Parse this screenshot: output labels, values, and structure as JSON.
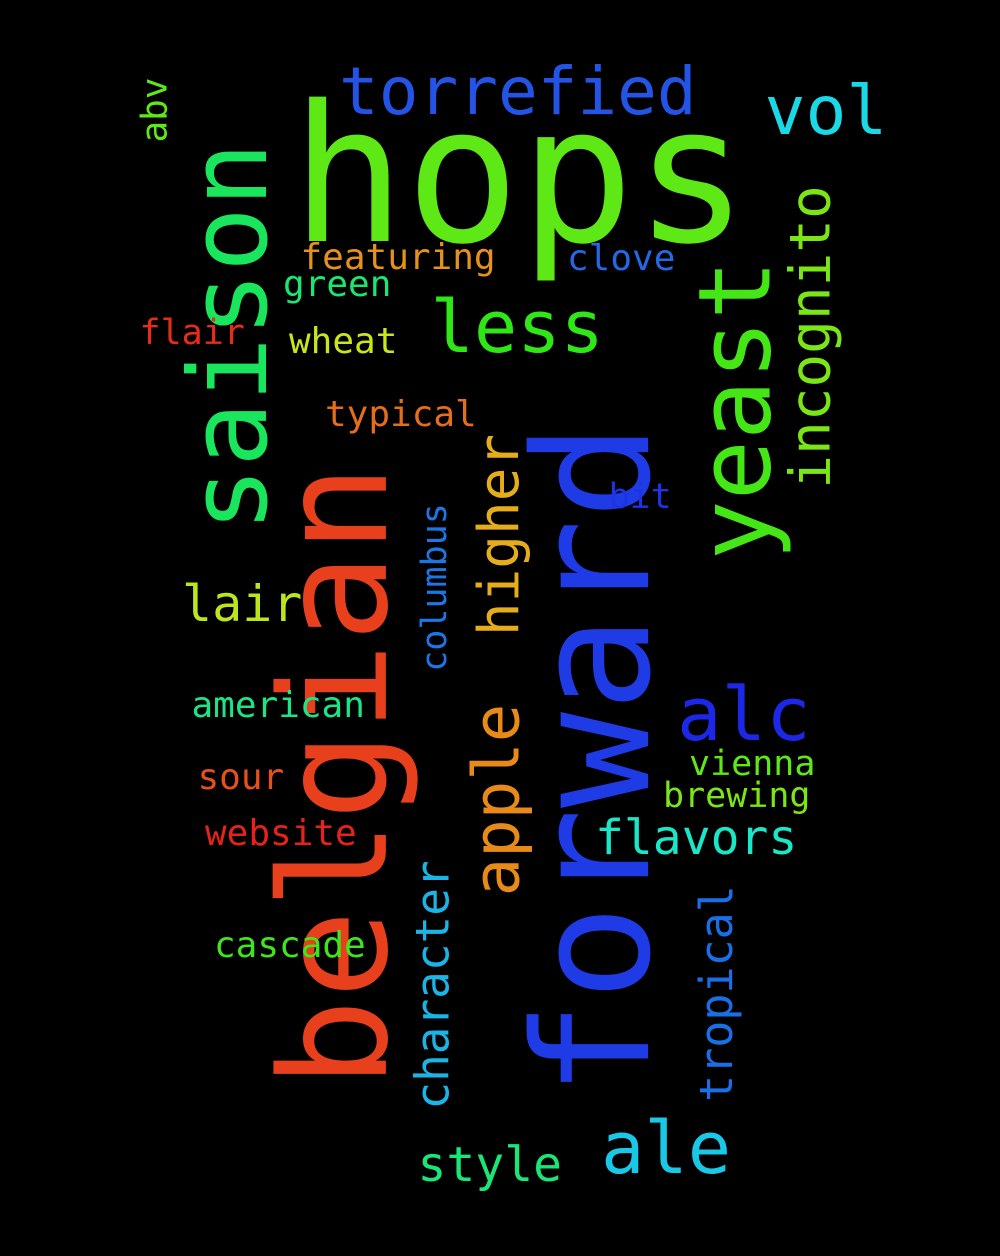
{
  "words": [
    {
      "text": "hops",
      "color": "#5ee815",
      "vertical": false
    },
    {
      "text": "forward",
      "color": "#1f3be6",
      "vertical": true
    },
    {
      "text": "belgian",
      "color": "#e8401c",
      "vertical": true
    },
    {
      "text": "saison",
      "color": "#19e65c",
      "vertical": true
    },
    {
      "text": "yeast",
      "color": "#45e616",
      "vertical": true
    },
    {
      "text": "torrefied",
      "color": "#2454e6",
      "vertical": false
    },
    {
      "text": "vol",
      "color": "#1ad8e6",
      "vertical": false
    },
    {
      "text": "less",
      "color": "#2fe617",
      "vertical": false
    },
    {
      "text": "incognito",
      "color": "#7ae616",
      "vertical": true
    },
    {
      "text": "apple",
      "color": "#e88a18",
      "vertical": true
    },
    {
      "text": "higher",
      "color": "#e6ad1a",
      "vertical": true
    },
    {
      "text": "alc",
      "color": "#1c28e6",
      "vertical": false
    },
    {
      "text": "ale",
      "color": "#19c8e6",
      "vertical": false
    },
    {
      "text": "lair",
      "color": "#bde61a",
      "vertical": false
    },
    {
      "text": "abv",
      "color": "#5ee818",
      "vertical": true
    },
    {
      "text": "featuring",
      "color": "#e6921a",
      "vertical": false
    },
    {
      "text": "clove",
      "color": "#2468e6",
      "vertical": false
    },
    {
      "text": "green",
      "color": "#1ae670",
      "vertical": false
    },
    {
      "text": "flair",
      "color": "#e62c1a",
      "vertical": false
    },
    {
      "text": "wheat",
      "color": "#c8e61a",
      "vertical": false
    },
    {
      "text": "typical",
      "color": "#e66e1a",
      "vertical": false
    },
    {
      "text": "bit",
      "color": "#1c34e6",
      "vertical": false
    },
    {
      "text": "columbus",
      "color": "#1a78e6",
      "vertical": true
    },
    {
      "text": "american",
      "color": "#1ae686",
      "vertical": false
    },
    {
      "text": "vienna",
      "color": "#5ee81a",
      "vertical": false
    },
    {
      "text": "brewing",
      "color": "#7ae61a",
      "vertical": false
    },
    {
      "text": "sour",
      "color": "#e6501a",
      "vertical": false
    },
    {
      "text": "flavors",
      "color": "#1ae6c8",
      "vertical": false
    },
    {
      "text": "website",
      "color": "#e6221a",
      "vertical": false
    },
    {
      "text": "character",
      "color": "#1ab4e6",
      "vertical": true
    },
    {
      "text": "tropical",
      "color": "#1a6ee6",
      "vertical": true
    },
    {
      "text": "cascade",
      "color": "#3ee61a",
      "vertical": false
    },
    {
      "text": "style",
      "color": "#1ae678",
      "vertical": false
    }
  ]
}
